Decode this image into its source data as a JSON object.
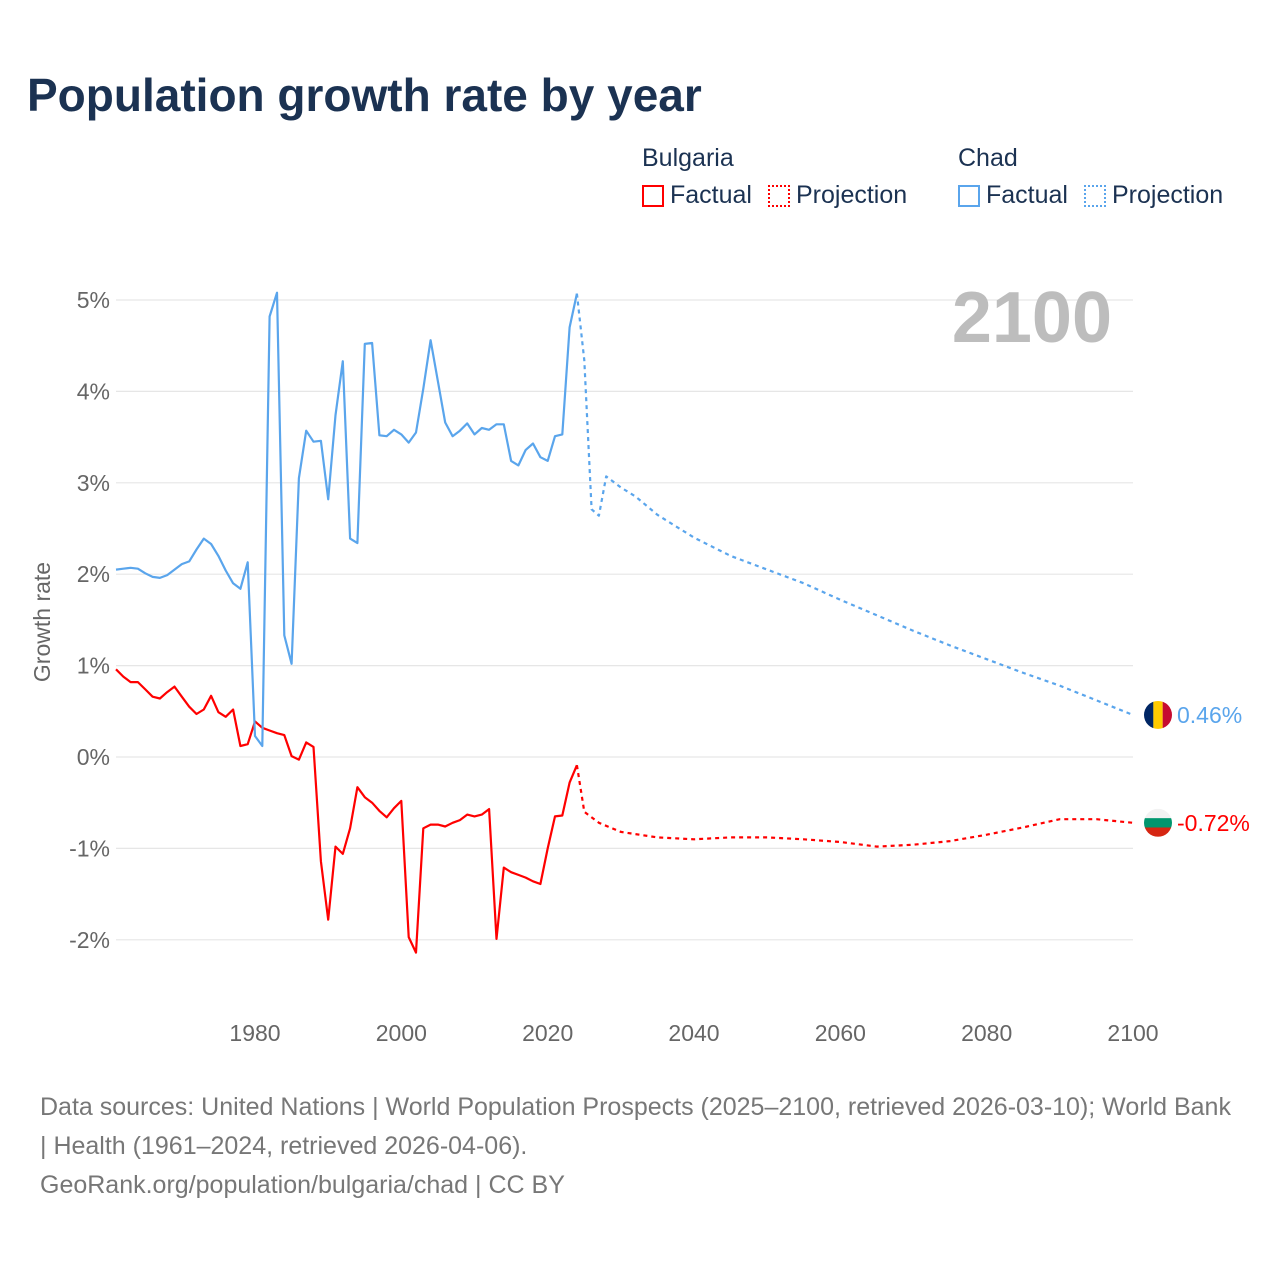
{
  "title": "Population growth rate by year",
  "legend": {
    "groups": [
      {
        "name": "Bulgaria",
        "factual": "Factual",
        "projection": "Projection",
        "color": "#ff0000"
      },
      {
        "name": "Chad",
        "factual": "Factual",
        "projection": "Projection",
        "color": "#5aa5ec"
      }
    ]
  },
  "chart_data": {
    "type": "line",
    "title": "Population growth rate by year",
    "ylabel": "Growth rate",
    "xlabel": "",
    "year_label": "2100",
    "xlim": [
      1961,
      2100
    ],
    "ylim": [
      -2.5,
      5.1
    ],
    "yticks": [
      5,
      4,
      3,
      2,
      1,
      0,
      -1,
      -2
    ],
    "ytick_labels": [
      "5%",
      "4%",
      "3%",
      "2%",
      "1%",
      "0%",
      "-1%",
      "-2%"
    ],
    "xticks": [
      1980,
      2000,
      2020,
      2040,
      2060,
      2080,
      2100
    ],
    "xtick_labels": [
      "1980",
      "2000",
      "2020",
      "2040",
      "2060",
      "2080",
      "2100"
    ],
    "grid": true,
    "series": [
      {
        "name": "Bulgaria",
        "kind": "factual",
        "color": "#ff0000",
        "start_year": 1961,
        "values": [
          0.96,
          0.88,
          0.82,
          0.82,
          0.74,
          0.66,
          0.64,
          0.71,
          0.77,
          0.66,
          0.55,
          0.47,
          0.52,
          0.67,
          0.49,
          0.44,
          0.52,
          0.12,
          0.14,
          0.39,
          0.32,
          0.29,
          0.26,
          0.24,
          0.01,
          -0.03,
          0.16,
          0.11,
          -1.14,
          -1.78,
          -0.98,
          -1.06,
          -0.78,
          -0.33,
          -0.44,
          -0.5,
          -0.59,
          -0.66,
          -0.56,
          -0.48,
          -1.97,
          -2.14,
          -0.78,
          -0.74,
          -0.74,
          -0.76,
          -0.72,
          -0.69,
          -0.63,
          -0.65,
          -0.63,
          -0.57,
          -1.99,
          -1.21,
          -1.26,
          -1.29,
          -1.32,
          -1.36,
          -1.39,
          -1.0,
          -0.65,
          -0.64,
          -0.28,
          -0.09
        ]
      },
      {
        "name": "Bulgaria",
        "kind": "projection",
        "color": "#ff0000",
        "x": [
          2024,
          2025,
          2027,
          2030,
          2035,
          2040,
          2045,
          2050,
          2055,
          2060,
          2065,
          2070,
          2075,
          2080,
          2085,
          2090,
          2095,
          2100
        ],
        "values": [
          -0.09,
          -0.6,
          -0.72,
          -0.82,
          -0.88,
          -0.9,
          -0.88,
          -0.88,
          -0.9,
          -0.93,
          -0.98,
          -0.96,
          -0.92,
          -0.85,
          -0.77,
          -0.68,
          -0.68,
          -0.72
        ]
      },
      {
        "name": "Chad",
        "kind": "factual",
        "color": "#5aa5ec",
        "start_year": 1961,
        "values": [
          2.05,
          2.06,
          2.07,
          2.06,
          2.01,
          1.97,
          1.96,
          1.99,
          2.05,
          2.11,
          2.14,
          2.27,
          2.39,
          2.33,
          2.2,
          2.04,
          1.9,
          1.84,
          2.13,
          0.23,
          0.12,
          4.82,
          5.08,
          1.33,
          1.02,
          3.05,
          3.57,
          3.45,
          3.46,
          2.82,
          3.74,
          4.33,
          2.39,
          2.34,
          4.52,
          4.53,
          3.52,
          3.51,
          3.58,
          3.53,
          3.44,
          3.55,
          4.03,
          4.56,
          4.11,
          3.66,
          3.51,
          3.57,
          3.65,
          3.53,
          3.6,
          3.58,
          3.64,
          3.64,
          3.24,
          3.19,
          3.36,
          3.43,
          3.28,
          3.24,
          3.51,
          3.53,
          4.7,
          5.07
        ]
      },
      {
        "name": "Chad",
        "kind": "projection",
        "color": "#5aa5ec",
        "x": [
          2024,
          2025,
          2026,
          2027,
          2028,
          2030,
          2032,
          2035,
          2040,
          2045,
          2050,
          2055,
          2060,
          2065,
          2070,
          2075,
          2080,
          2085,
          2090,
          2095,
          2100
        ],
        "values": [
          5.07,
          4.34,
          2.71,
          2.64,
          3.07,
          2.95,
          2.85,
          2.65,
          2.4,
          2.2,
          2.05,
          1.9,
          1.72,
          1.55,
          1.38,
          1.22,
          1.07,
          0.92,
          0.78,
          0.62,
          0.46
        ]
      }
    ],
    "end_labels": [
      {
        "name": "Chad",
        "text": "0.46%",
        "value": 0.46,
        "color": "#5aa5ec"
      },
      {
        "name": "Bulgaria",
        "text": "-0.72%",
        "value": -0.72,
        "color": "#ff0000"
      }
    ]
  },
  "footer": {
    "sources": "Data sources: United Nations | World Population Prospects (2025–2100, retrieved 2026-03-10); World Bank | Health (1961–2024, retrieved 2026-04-06).",
    "link": "GeoRank.org/population/bulgaria/chad | CC BY"
  }
}
